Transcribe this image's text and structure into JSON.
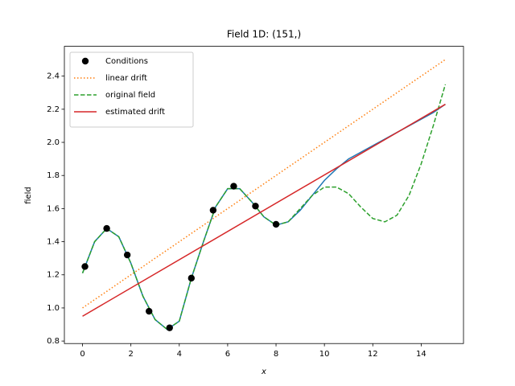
{
  "chart_data": {
    "type": "line",
    "title": "Field 1D: (151,)",
    "xlabel": "x",
    "ylabel": "field",
    "xlim": [
      -0.75,
      15.75
    ],
    "ylim": [
      0.785,
      2.58
    ],
    "xticks": [
      0,
      2,
      4,
      6,
      8,
      10,
      12,
      14
    ],
    "yticks": [
      0.8,
      {
        "value": 1,
        "label": "1.0"
      },
      1.2,
      1.4,
      1.6,
      1.8,
      {
        "value": 2,
        "label": "2.0"
      },
      2.2,
      2.4
    ],
    "legend": "upper left",
    "series": [
      {
        "name": "Conditions",
        "color": "#000000",
        "style": "marker",
        "x": [
          0.1,
          1,
          1.85,
          2.75,
          3.6,
          4.5,
          5.4,
          6.25,
          7.15,
          8.0
        ],
        "values": [
          1.25,
          1.48,
          1.32,
          0.98,
          0.88,
          1.18,
          1.59,
          1.735,
          1.615,
          1.505
        ]
      },
      {
        "name": "linear drift",
        "color": "#ff7f0e",
        "style": "dotted",
        "x": [
          0,
          15
        ],
        "values": [
          1.0,
          2.5
        ]
      },
      {
        "name": "original field",
        "color": "#2ca02c",
        "style": "dashed",
        "x": [
          0,
          0.5,
          1,
          1.5,
          2,
          2.5,
          3,
          3.5,
          4,
          4.5,
          5,
          5.5,
          6,
          6.5,
          7,
          7.5,
          8,
          8.5,
          9,
          9.5,
          10,
          10.5,
          11,
          11.5,
          12,
          12.5,
          13,
          13.5,
          14,
          14.5,
          15
        ],
        "values": [
          1.21,
          1.4,
          1.48,
          1.43,
          1.27,
          1.07,
          0.93,
          0.87,
          0.92,
          1.18,
          1.4,
          1.61,
          1.72,
          1.72,
          1.64,
          1.55,
          1.5,
          1.52,
          1.6,
          1.68,
          1.73,
          1.73,
          1.69,
          1.61,
          1.54,
          1.52,
          1.56,
          1.68,
          1.87,
          2.1,
          2.35
        ]
      },
      {
        "name": "estimated drift",
        "color": "#d62728",
        "style": "solid",
        "x": [
          0,
          15
        ],
        "values": [
          0.95,
          2.23
        ]
      },
      {
        "color": "#1f77b4",
        "style": "solid",
        "x": [
          0,
          0.5,
          1,
          1.5,
          2,
          2.5,
          3,
          3.5,
          4,
          4.5,
          5,
          5.5,
          6,
          6.5,
          7,
          7.5,
          8,
          8.5,
          9,
          9.5,
          10,
          10.5,
          11,
          11.5,
          12,
          12.5,
          13,
          13.5,
          14,
          14.5,
          15
        ],
        "values": [
          1.21,
          1.4,
          1.48,
          1.43,
          1.27,
          1.07,
          0.93,
          0.87,
          0.92,
          1.18,
          1.4,
          1.61,
          1.72,
          1.72,
          1.64,
          1.55,
          1.5,
          1.52,
          1.59,
          1.68,
          1.77,
          1.84,
          1.9,
          1.94,
          1.98,
          2.02,
          2.06,
          2.1,
          2.14,
          2.18,
          2.23
        ]
      }
    ]
  }
}
